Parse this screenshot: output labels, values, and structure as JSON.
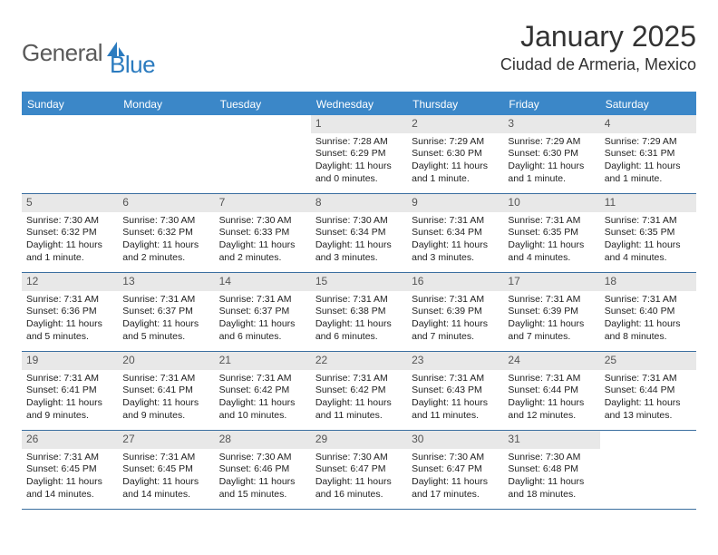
{
  "logo": {
    "text1": "General",
    "text2": "Blue"
  },
  "title": "January 2025",
  "location": "Ciudad de Armeria, Mexico",
  "dow": [
    "Sunday",
    "Monday",
    "Tuesday",
    "Wednesday",
    "Thursday",
    "Friday",
    "Saturday"
  ],
  "colors": {
    "header_bg": "#3b87c8",
    "header_text": "#ffffff",
    "daynum_bg": "#e8e8e8",
    "border": "#3b6fa0",
    "logo_gray": "#5a5a5a",
    "logo_blue": "#2b7bbf"
  },
  "weeks": [
    [
      {
        "n": "",
        "empty": true
      },
      {
        "n": "",
        "empty": true
      },
      {
        "n": "",
        "empty": true
      },
      {
        "n": "1",
        "sr": "7:28 AM",
        "ss": "6:29 PM",
        "d1": "Daylight: 11 hours",
        "d2": "and 0 minutes."
      },
      {
        "n": "2",
        "sr": "7:29 AM",
        "ss": "6:30 PM",
        "d1": "Daylight: 11 hours",
        "d2": "and 1 minute."
      },
      {
        "n": "3",
        "sr": "7:29 AM",
        "ss": "6:30 PM",
        "d1": "Daylight: 11 hours",
        "d2": "and 1 minute."
      },
      {
        "n": "4",
        "sr": "7:29 AM",
        "ss": "6:31 PM",
        "d1": "Daylight: 11 hours",
        "d2": "and 1 minute."
      }
    ],
    [
      {
        "n": "5",
        "sr": "7:30 AM",
        "ss": "6:32 PM",
        "d1": "Daylight: 11 hours",
        "d2": "and 1 minute."
      },
      {
        "n": "6",
        "sr": "7:30 AM",
        "ss": "6:32 PM",
        "d1": "Daylight: 11 hours",
        "d2": "and 2 minutes."
      },
      {
        "n": "7",
        "sr": "7:30 AM",
        "ss": "6:33 PM",
        "d1": "Daylight: 11 hours",
        "d2": "and 2 minutes."
      },
      {
        "n": "8",
        "sr": "7:30 AM",
        "ss": "6:34 PM",
        "d1": "Daylight: 11 hours",
        "d2": "and 3 minutes."
      },
      {
        "n": "9",
        "sr": "7:31 AM",
        "ss": "6:34 PM",
        "d1": "Daylight: 11 hours",
        "d2": "and 3 minutes."
      },
      {
        "n": "10",
        "sr": "7:31 AM",
        "ss": "6:35 PM",
        "d1": "Daylight: 11 hours",
        "d2": "and 4 minutes."
      },
      {
        "n": "11",
        "sr": "7:31 AM",
        "ss": "6:35 PM",
        "d1": "Daylight: 11 hours",
        "d2": "and 4 minutes."
      }
    ],
    [
      {
        "n": "12",
        "sr": "7:31 AM",
        "ss": "6:36 PM",
        "d1": "Daylight: 11 hours",
        "d2": "and 5 minutes."
      },
      {
        "n": "13",
        "sr": "7:31 AM",
        "ss": "6:37 PM",
        "d1": "Daylight: 11 hours",
        "d2": "and 5 minutes."
      },
      {
        "n": "14",
        "sr": "7:31 AM",
        "ss": "6:37 PM",
        "d1": "Daylight: 11 hours",
        "d2": "and 6 minutes."
      },
      {
        "n": "15",
        "sr": "7:31 AM",
        "ss": "6:38 PM",
        "d1": "Daylight: 11 hours",
        "d2": "and 6 minutes."
      },
      {
        "n": "16",
        "sr": "7:31 AM",
        "ss": "6:39 PM",
        "d1": "Daylight: 11 hours",
        "d2": "and 7 minutes."
      },
      {
        "n": "17",
        "sr": "7:31 AM",
        "ss": "6:39 PM",
        "d1": "Daylight: 11 hours",
        "d2": "and 7 minutes."
      },
      {
        "n": "18",
        "sr": "7:31 AM",
        "ss": "6:40 PM",
        "d1": "Daylight: 11 hours",
        "d2": "and 8 minutes."
      }
    ],
    [
      {
        "n": "19",
        "sr": "7:31 AM",
        "ss": "6:41 PM",
        "d1": "Daylight: 11 hours",
        "d2": "and 9 minutes."
      },
      {
        "n": "20",
        "sr": "7:31 AM",
        "ss": "6:41 PM",
        "d1": "Daylight: 11 hours",
        "d2": "and 9 minutes."
      },
      {
        "n": "21",
        "sr": "7:31 AM",
        "ss": "6:42 PM",
        "d1": "Daylight: 11 hours",
        "d2": "and 10 minutes."
      },
      {
        "n": "22",
        "sr": "7:31 AM",
        "ss": "6:42 PM",
        "d1": "Daylight: 11 hours",
        "d2": "and 11 minutes."
      },
      {
        "n": "23",
        "sr": "7:31 AM",
        "ss": "6:43 PM",
        "d1": "Daylight: 11 hours",
        "d2": "and 11 minutes."
      },
      {
        "n": "24",
        "sr": "7:31 AM",
        "ss": "6:44 PM",
        "d1": "Daylight: 11 hours",
        "d2": "and 12 minutes."
      },
      {
        "n": "25",
        "sr": "7:31 AM",
        "ss": "6:44 PM",
        "d1": "Daylight: 11 hours",
        "d2": "and 13 minutes."
      }
    ],
    [
      {
        "n": "26",
        "sr": "7:31 AM",
        "ss": "6:45 PM",
        "d1": "Daylight: 11 hours",
        "d2": "and 14 minutes."
      },
      {
        "n": "27",
        "sr": "7:31 AM",
        "ss": "6:45 PM",
        "d1": "Daylight: 11 hours",
        "d2": "and 14 minutes."
      },
      {
        "n": "28",
        "sr": "7:30 AM",
        "ss": "6:46 PM",
        "d1": "Daylight: 11 hours",
        "d2": "and 15 minutes."
      },
      {
        "n": "29",
        "sr": "7:30 AM",
        "ss": "6:47 PM",
        "d1": "Daylight: 11 hours",
        "d2": "and 16 minutes."
      },
      {
        "n": "30",
        "sr": "7:30 AM",
        "ss": "6:47 PM",
        "d1": "Daylight: 11 hours",
        "d2": "and 17 minutes."
      },
      {
        "n": "31",
        "sr": "7:30 AM",
        "ss": "6:48 PM",
        "d1": "Daylight: 11 hours",
        "d2": "and 18 minutes."
      },
      {
        "n": "",
        "empty": true
      }
    ]
  ]
}
